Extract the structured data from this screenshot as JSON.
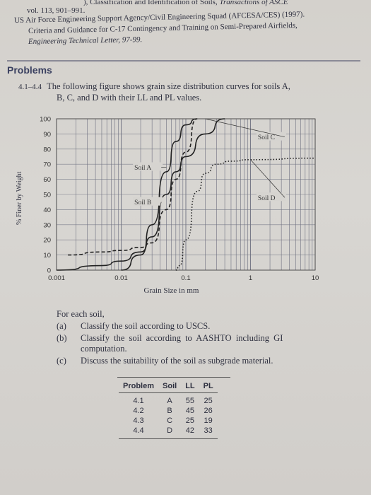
{
  "references": {
    "line1_partial": "), Classification and Identification of Soils,",
    "line1_journal": "Transactions of ASCE",
    "line2": "vol. 113, 901–991.",
    "line3": "US Air Force Engineering Support Agency/Civil Engineering Squad (AFCESA/CES) (1997).",
    "line4": "Criteria and Guidance for C-17 Contingency and Training on Semi-Prepared Airfields,",
    "line5": "Engineering Technical Letter, 97-99."
  },
  "section_title": "Problems",
  "problem": {
    "number": "4.1–4.4",
    "text_line1": "The following figure shows grain size distribution curves for soils A,",
    "text_line2": "B, C, and D with their LL and PL values."
  },
  "chart_data": {
    "type": "line",
    "xscale": "log",
    "xlim": [
      0.001,
      10
    ],
    "ylim": [
      0,
      100
    ],
    "xticks": [
      "0.001",
      "0.01",
      "0.1",
      "1",
      "10"
    ],
    "yticks": [
      "0",
      "10",
      "20",
      "30",
      "40",
      "50",
      "60",
      "70",
      "80",
      "90",
      "100"
    ],
    "xlabel": "Grain Size in mm",
    "ylabel": "% Finer by Weight",
    "grid": true,
    "series": [
      {
        "name": "Soil A",
        "style": "solid",
        "x": [
          0.01,
          0.02,
          0.03,
          0.05,
          0.07,
          0.1,
          0.15
        ],
        "y": [
          0,
          10,
          30,
          65,
          85,
          96,
          100
        ]
      },
      {
        "name": "Soil B",
        "style": "solid",
        "x": [
          0.001,
          0.005,
          0.01,
          0.02,
          0.03,
          0.05,
          0.07,
          0.1,
          0.2,
          0.4
        ],
        "y": [
          0,
          3,
          6,
          12,
          22,
          50,
          65,
          75,
          90,
          100
        ]
      },
      {
        "name": "Soil C",
        "style": "dashed",
        "x": [
          0.0015,
          0.005,
          0.01,
          0.02,
          0.03,
          0.05,
          0.07,
          0.1,
          0.15
        ],
        "y": [
          10,
          12,
          13,
          15,
          18,
          40,
          60,
          78,
          100
        ]
      },
      {
        "name": "Soil D",
        "style": "dotted",
        "x": [
          0.07,
          0.08,
          0.1,
          0.15,
          0.2,
          0.3,
          0.5,
          1,
          10
        ],
        "y": [
          0,
          3,
          20,
          52,
          64,
          70,
          72,
          73,
          74
        ]
      }
    ]
  },
  "tasks": {
    "intro": "For each soil,",
    "items": [
      {
        "letter": "(a)",
        "text": "Classify the soil according to USCS."
      },
      {
        "letter": "(b)",
        "text": "Classify the soil according to AASHTO including GI"
      },
      {
        "letter": "",
        "text": "computation."
      },
      {
        "letter": "(c)",
        "text": "Discuss the suitability of the soil as subgrade material."
      }
    ]
  },
  "table": {
    "headers": [
      "Problem",
      "Soil",
      "LL",
      "PL"
    ],
    "rows": [
      [
        "4.1",
        "A",
        "55",
        "25"
      ],
      [
        "4.2",
        "B",
        "45",
        "26"
      ],
      [
        "4.3",
        "C",
        "25",
        "19"
      ],
      [
        "4.4",
        "D",
        "42",
        "33"
      ]
    ]
  }
}
